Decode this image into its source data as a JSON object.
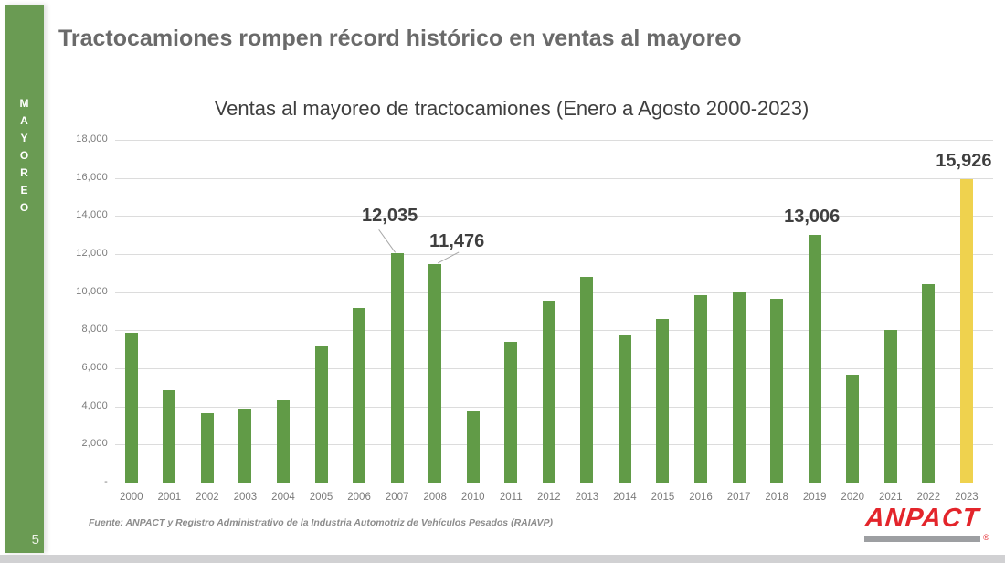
{
  "page": {
    "number": "5"
  },
  "sidebar": {
    "vertical_label": "MAYOREO",
    "color": "#6A9B53"
  },
  "header": {
    "title": "Tractocamiones rompen récord histórico en ventas al mayoreo"
  },
  "footer": {
    "source": "Fuente: ANPACT y Registro Administrativo de la Industria Automotriz de Vehículos Pesados (RAIAVP)",
    "logo_text": "ANPACT",
    "registered_symbol": "®",
    "logo_color": "#E3252B"
  },
  "chart_data": {
    "type": "bar",
    "title": "Ventas al mayoreo de tractocamiones (Enero a Agosto 2000-2023)",
    "categories": [
      "2000",
      "2001",
      "2002",
      "2003",
      "2004",
      "2005",
      "2006",
      "2007",
      "2008",
      "2010",
      "2011",
      "2012",
      "2013",
      "2014",
      "2015",
      "2016",
      "2017",
      "2018",
      "2019",
      "2020",
      "2021",
      "2022",
      "2023"
    ],
    "values": [
      7850,
      4850,
      3650,
      3900,
      4300,
      7150,
      9150,
      12035,
      11476,
      3750,
      7400,
      9550,
      10800,
      7750,
      8600,
      9850,
      10050,
      9650,
      13006,
      5650,
      8000,
      10400,
      15926
    ],
    "highlight_category": "2023",
    "bar_color": "#619B47",
    "highlight_color": "#EFD24E",
    "ylim": [
      0,
      18000
    ],
    "ytick_step": 2000,
    "ytick_labels": [
      "-",
      "2,000",
      "4,000",
      "6,000",
      "8,000",
      "10,000",
      "12,000",
      "14,000",
      "16,000",
      "18,000"
    ],
    "grid": true,
    "legend": false,
    "annotations": [
      {
        "category": "2007",
        "label": "12,035",
        "placement": "leader-left"
      },
      {
        "category": "2008",
        "label": "11,476",
        "placement": "leader-right"
      },
      {
        "category": "2019",
        "label": "13,006",
        "placement": "above"
      },
      {
        "category": "2023",
        "label": "15,926",
        "placement": "above"
      }
    ]
  }
}
